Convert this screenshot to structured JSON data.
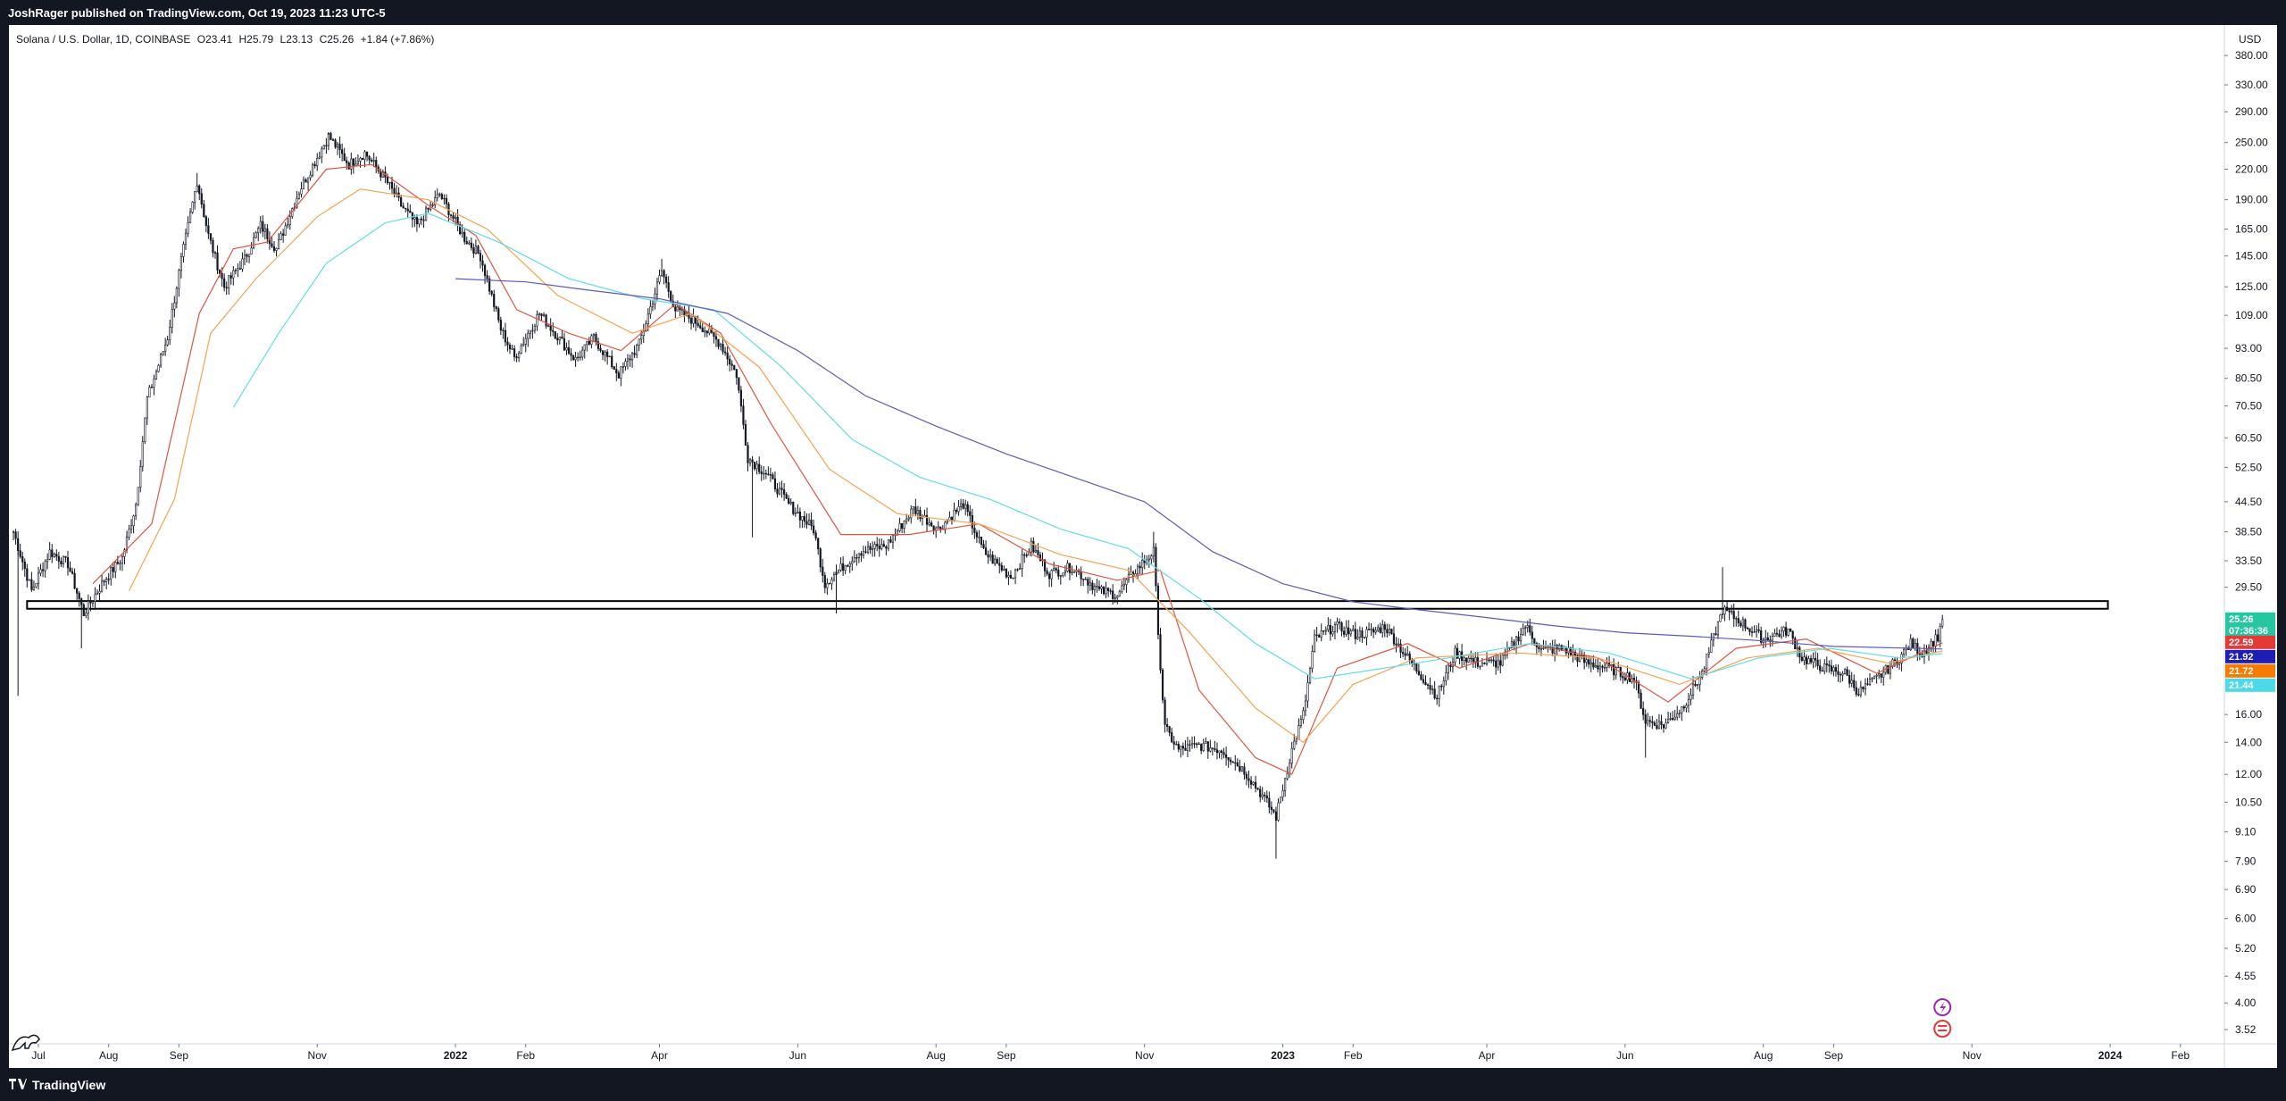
{
  "header": {
    "publish_line": "JoshRager published on TradingView.com, Oct 19, 2023 11:23 UTC-5"
  },
  "legend": {
    "symbol": "Solana / U.S. Dollar, 1D, COINBASE",
    "open": "O23.41",
    "high": "H25.79",
    "low": "L23.13",
    "close": "C25.26",
    "change": "+1.84 (+7.86%)"
  },
  "footer": {
    "brand": "TradingView"
  },
  "colors": {
    "candle": "#131722",
    "ma_red": "#e0553f",
    "ma_orange": "#f6a24f",
    "ma_cyan": "#5fdde8",
    "ma_blue": "#5b5bbd",
    "zone": "#000000",
    "close_tag": "#26c6a0",
    "red_tag": "#e53935",
    "blue_tag": "#1e1eb4",
    "orange_tag": "#f57c00",
    "cyan_tag": "#4dd9e8"
  },
  "chart_data": {
    "type": "candlestick",
    "title": "Solana / U.S. Dollar, 1D, COINBASE",
    "y_unit": "USD",
    "y_scale": "log",
    "ylim": [
      3.3,
      440
    ],
    "xlim": [
      "2021-06-18",
      "2024-02-20"
    ],
    "x_ticks": [
      {
        "date": "2021-07-01",
        "label": "Jul"
      },
      {
        "date": "2021-08-01",
        "label": "Aug"
      },
      {
        "date": "2021-09-01",
        "label": "Sep"
      },
      {
        "date": "2021-11-01",
        "label": "Nov"
      },
      {
        "date": "2022-01-01",
        "label": "2022"
      },
      {
        "date": "2022-02-01",
        "label": "Feb"
      },
      {
        "date": "2022-04-01",
        "label": "Apr"
      },
      {
        "date": "2022-06-01",
        "label": "Jun"
      },
      {
        "date": "2022-08-01",
        "label": "Aug"
      },
      {
        "date": "2022-09-01",
        "label": "Sep"
      },
      {
        "date": "2022-11-01",
        "label": "Nov"
      },
      {
        "date": "2023-01-01",
        "label": "2023"
      },
      {
        "date": "2023-02-01",
        "label": "Feb"
      },
      {
        "date": "2023-04-01",
        "label": "Apr"
      },
      {
        "date": "2023-06-01",
        "label": "Jun"
      },
      {
        "date": "2023-08-01",
        "label": "Aug"
      },
      {
        "date": "2023-09-01",
        "label": "Sep"
      },
      {
        "date": "2023-11-01",
        "label": "Nov"
      },
      {
        "date": "2024-01-01",
        "label": "2024"
      },
      {
        "date": "2024-02-01",
        "label": "Feb"
      }
    ],
    "y_ticks": [
      {
        "value": 380,
        "label": "380.00"
      },
      {
        "value": 330,
        "label": "330.00"
      },
      {
        "value": 290,
        "label": "290.00"
      },
      {
        "value": 250,
        "label": "250.00"
      },
      {
        "value": 220,
        "label": "220.00"
      },
      {
        "value": 190,
        "label": "190.00"
      },
      {
        "value": 165,
        "label": "165.00"
      },
      {
        "value": 145,
        "label": "145.00"
      },
      {
        "value": 125,
        "label": "125.00"
      },
      {
        "value": 109,
        "label": "109.00"
      },
      {
        "value": 93,
        "label": "93.00"
      },
      {
        "value": 80.5,
        "label": "80.50"
      },
      {
        "value": 70.5,
        "label": "70.50"
      },
      {
        "value": 60.5,
        "label": "60.50"
      },
      {
        "value": 52.5,
        "label": "52.50"
      },
      {
        "value": 44.5,
        "label": "44.50"
      },
      {
        "value": 38.5,
        "label": "38.50"
      },
      {
        "value": 33.5,
        "label": "33.50"
      },
      {
        "value": 29.5,
        "label": "29.50"
      },
      {
        "value": 16,
        "label": "16.00"
      },
      {
        "value": 14,
        "label": "14.00"
      },
      {
        "value": 12,
        "label": "12.00"
      },
      {
        "value": 10.5,
        "label": "10.50"
      },
      {
        "value": 9.1,
        "label": "9.10"
      },
      {
        "value": 7.9,
        "label": "7.90"
      },
      {
        "value": 6.9,
        "label": "6.90"
      },
      {
        "value": 6,
        "label": "6.00"
      },
      {
        "value": 5.2,
        "label": "5.20"
      },
      {
        "value": 4.55,
        "label": "4.55"
      },
      {
        "value": 4,
        "label": "4.00"
      },
      {
        "value": 3.52,
        "label": "3.52"
      }
    ],
    "price_tags": [
      {
        "value": 25.26,
        "label": "25.26",
        "sublabel": "07:36:36",
        "color": "#26c6a0"
      },
      {
        "value": 22.59,
        "label": "22.59",
        "color": "#e53935"
      },
      {
        "value": 21.92,
        "label": "21.92",
        "color": "#1e1eb4"
      },
      {
        "value": 21.72,
        "label": "21.72",
        "color": "#f57c00"
      },
      {
        "value": 21.44,
        "label": "21.44",
        "color": "#4dd9e8"
      }
    ],
    "support_zone": {
      "low": 26.6,
      "high": 27.6,
      "start": "2021-06-26",
      "end": "2023-12-31"
    },
    "price_path": [
      [
        "2021-06-20",
        38.5
      ],
      [
        "2021-06-28",
        29.0
      ],
      [
        "2021-07-06",
        35.0
      ],
      [
        "2021-07-14",
        33.0
      ],
      [
        "2021-07-21",
        26.0
      ],
      [
        "2021-07-30",
        30.5
      ],
      [
        "2021-08-07",
        34.0
      ],
      [
        "2021-08-13",
        44.0
      ],
      [
        "2021-08-18",
        73.0
      ],
      [
        "2021-08-27",
        98.0
      ],
      [
        "2021-09-02",
        142.0
      ],
      [
        "2021-09-09",
        208.0
      ],
      [
        "2021-09-14",
        160.0
      ],
      [
        "2021-09-21",
        125.0
      ],
      [
        "2021-09-30",
        143.0
      ],
      [
        "2021-10-07",
        168.0
      ],
      [
        "2021-10-14",
        150.0
      ],
      [
        "2021-10-24",
        198.0
      ],
      [
        "2021-11-06",
        258.0
      ],
      [
        "2021-11-15",
        225.0
      ],
      [
        "2021-11-22",
        238.0
      ],
      [
        "2021-12-01",
        210.0
      ],
      [
        "2021-12-08",
        185.0
      ],
      [
        "2021-12-15",
        168.0
      ],
      [
        "2021-12-25",
        195.0
      ],
      [
        "2022-01-05",
        158.0
      ],
      [
        "2022-01-12",
        145.0
      ],
      [
        "2022-01-21",
        102.0
      ],
      [
        "2022-01-27",
        89.0
      ],
      [
        "2022-02-07",
        110.0
      ],
      [
        "2022-02-14",
        100.0
      ],
      [
        "2022-02-23",
        88.0
      ],
      [
        "2022-03-03",
        98.0
      ],
      [
        "2022-03-14",
        82.0
      ],
      [
        "2022-03-23",
        95.0
      ],
      [
        "2022-04-02",
        135.0
      ],
      [
        "2022-04-08",
        112.0
      ],
      [
        "2022-04-18",
        105.0
      ],
      [
        "2022-04-28",
        95.0
      ],
      [
        "2022-05-05",
        82.0
      ],
      [
        "2022-05-10",
        55.0
      ],
      [
        "2022-05-18",
        51.0
      ],
      [
        "2022-05-28",
        44.0
      ],
      [
        "2022-06-08",
        39.0
      ],
      [
        "2022-06-13",
        30.0
      ],
      [
        "2022-06-19",
        32.0
      ],
      [
        "2022-06-28",
        35.0
      ],
      [
        "2022-07-10",
        36.0
      ],
      [
        "2022-07-22",
        43.0
      ],
      [
        "2022-08-02",
        39.0
      ],
      [
        "2022-08-13",
        44.0
      ],
      [
        "2022-08-22",
        35.0
      ],
      [
        "2022-09-03",
        31.0
      ],
      [
        "2022-09-12",
        36.0
      ],
      [
        "2022-09-20",
        31.5
      ],
      [
        "2022-09-30",
        32.5
      ],
      [
        "2022-10-12",
        29.0
      ],
      [
        "2022-10-20",
        28.5
      ],
      [
        "2022-10-28",
        32.0
      ],
      [
        "2022-11-05",
        35.0
      ],
      [
        "2022-11-08",
        20.0
      ],
      [
        "2022-11-10",
        15.0
      ],
      [
        "2022-11-16",
        13.5
      ],
      [
        "2022-11-25",
        13.8
      ],
      [
        "2022-12-05",
        13.5
      ],
      [
        "2022-12-15",
        12.2
      ],
      [
        "2022-12-22",
        11.0
      ],
      [
        "2022-12-29",
        9.8
      ],
      [
        "2023-01-05",
        13.5
      ],
      [
        "2023-01-10",
        16.0
      ],
      [
        "2023-01-15",
        23.0
      ],
      [
        "2023-01-24",
        24.5
      ],
      [
        "2023-02-02",
        23.5
      ],
      [
        "2023-02-10",
        23.8
      ],
      [
        "2023-02-15",
        24.5
      ],
      [
        "2023-02-25",
        21.0
      ],
      [
        "2023-03-10",
        17.5
      ],
      [
        "2023-03-18",
        21.5
      ],
      [
        "2023-03-28",
        20.5
      ],
      [
        "2023-04-07",
        20.5
      ],
      [
        "2023-04-18",
        24.5
      ],
      [
        "2023-04-25",
        21.8
      ],
      [
        "2023-05-05",
        22.0
      ],
      [
        "2023-05-15",
        20.5
      ],
      [
        "2023-05-25",
        20.0
      ],
      [
        "2023-06-05",
        19.0
      ],
      [
        "2023-06-10",
        15.5
      ],
      [
        "2023-06-18",
        15.2
      ],
      [
        "2023-06-26",
        16.5
      ],
      [
        "2023-07-05",
        19.5
      ],
      [
        "2023-07-14",
        26.5
      ],
      [
        "2023-07-22",
        25.0
      ],
      [
        "2023-08-01",
        23.0
      ],
      [
        "2023-08-12",
        24.0
      ],
      [
        "2023-08-18",
        21.0
      ],
      [
        "2023-08-28",
        20.0
      ],
      [
        "2023-09-06",
        19.5
      ],
      [
        "2023-09-12",
        17.8
      ],
      [
        "2023-09-21",
        19.2
      ],
      [
        "2023-09-30",
        21.0
      ],
      [
        "2023-10-05",
        22.5
      ],
      [
        "2023-10-10",
        21.5
      ],
      [
        "2023-10-17",
        23.3
      ],
      [
        "2023-10-19",
        25.26
      ]
    ],
    "wick_extremes": [
      {
        "date": "2021-06-22",
        "low": 17.5
      },
      {
        "date": "2021-07-20",
        "low": 22.0
      },
      {
        "date": "2021-09-09",
        "high": 216.0
      },
      {
        "date": "2021-11-06",
        "high": 260.0
      },
      {
        "date": "2022-04-02",
        "high": 143.0
      },
      {
        "date": "2022-05-12",
        "low": 37.5
      },
      {
        "date": "2022-06-18",
        "low": 26.0
      },
      {
        "date": "2022-11-05",
        "high": 38.5
      },
      {
        "date": "2022-12-29",
        "low": 8.0
      },
      {
        "date": "2023-06-10",
        "low": 13.0
      },
      {
        "date": "2023-07-14",
        "high": 32.5
      }
    ],
    "series": [
      {
        "color": "#e0553f",
        "points": [
          [
            "2021-07-25",
            30.0
          ],
          [
            "2021-08-20",
            40.0
          ],
          [
            "2021-09-10",
            110.0
          ],
          [
            "2021-09-25",
            150.0
          ],
          [
            "2021-10-10",
            155.0
          ],
          [
            "2021-11-05",
            220.0
          ],
          [
            "2021-11-25",
            225.0
          ],
          [
            "2021-12-20",
            185.0
          ],
          [
            "2022-01-10",
            160.0
          ],
          [
            "2022-01-28",
            112.0
          ],
          [
            "2022-02-20",
            100.0
          ],
          [
            "2022-03-15",
            92.0
          ],
          [
            "2022-04-08",
            115.0
          ],
          [
            "2022-04-28",
            100.0
          ],
          [
            "2022-05-20",
            65.0
          ],
          [
            "2022-06-20",
            38.0
          ],
          [
            "2022-07-20",
            38.0
          ],
          [
            "2022-08-20",
            40.0
          ],
          [
            "2022-09-20",
            33.0
          ],
          [
            "2022-10-20",
            30.5
          ],
          [
            "2022-11-08",
            32.0
          ],
          [
            "2022-11-25",
            18.0
          ],
          [
            "2022-12-20",
            13.0
          ],
          [
            "2023-01-05",
            12.0
          ],
          [
            "2023-01-25",
            20.0
          ],
          [
            "2023-02-25",
            22.5
          ],
          [
            "2023-03-20",
            20.0
          ],
          [
            "2023-04-20",
            22.5
          ],
          [
            "2023-05-20",
            21.0
          ],
          [
            "2023-06-20",
            17.0
          ],
          [
            "2023-07-20",
            22.0
          ],
          [
            "2023-08-20",
            23.0
          ],
          [
            "2023-09-20",
            19.5
          ],
          [
            "2023-10-19",
            22.59
          ]
        ]
      },
      {
        "color": "#f6a24f",
        "points": [
          [
            "2021-08-10",
            29.0
          ],
          [
            "2021-08-30",
            45.0
          ],
          [
            "2021-09-15",
            100.0
          ],
          [
            "2021-10-05",
            130.0
          ],
          [
            "2021-11-01",
            175.0
          ],
          [
            "2021-11-20",
            200.0
          ],
          [
            "2021-12-20",
            190.0
          ],
          [
            "2022-01-15",
            165.0
          ],
          [
            "2022-02-15",
            120.0
          ],
          [
            "2022-03-20",
            100.0
          ],
          [
            "2022-04-15",
            110.0
          ],
          [
            "2022-05-15",
            85.0
          ],
          [
            "2022-06-15",
            52.0
          ],
          [
            "2022-07-15",
            42.0
          ],
          [
            "2022-08-20",
            40.0
          ],
          [
            "2022-09-25",
            34.5
          ],
          [
            "2022-10-25",
            32.0
          ],
          [
            "2022-11-20",
            24.0
          ],
          [
            "2022-12-20",
            16.5
          ],
          [
            "2023-01-10",
            14.0
          ],
          [
            "2023-02-01",
            18.5
          ],
          [
            "2023-03-01",
            21.0
          ],
          [
            "2023-04-15",
            21.5
          ],
          [
            "2023-05-20",
            21.0
          ],
          [
            "2023-06-25",
            18.5
          ],
          [
            "2023-07-25",
            21.0
          ],
          [
            "2023-08-25",
            22.0
          ],
          [
            "2023-09-25",
            20.5
          ],
          [
            "2023-10-19",
            21.72
          ]
        ]
      },
      {
        "color": "#5fdde8",
        "points": [
          [
            "2021-09-25",
            70.0
          ],
          [
            "2021-10-15",
            100.0
          ],
          [
            "2021-11-05",
            140.0
          ],
          [
            "2021-12-01",
            170.0
          ],
          [
            "2021-12-20",
            178.0
          ],
          [
            "2022-01-20",
            155.0
          ],
          [
            "2022-02-20",
            130.0
          ],
          [
            "2022-03-25",
            118.0
          ],
          [
            "2022-04-25",
            112.0
          ],
          [
            "2022-05-25",
            85.0
          ],
          [
            "2022-06-25",
            60.0
          ],
          [
            "2022-07-25",
            50.0
          ],
          [
            "2022-08-25",
            45.0
          ],
          [
            "2022-09-25",
            39.0
          ],
          [
            "2022-10-25",
            35.5
          ],
          [
            "2022-11-25",
            28.0
          ],
          [
            "2022-12-20",
            22.5
          ],
          [
            "2023-01-15",
            19.0
          ],
          [
            "2023-02-15",
            20.0
          ],
          [
            "2023-03-15",
            21.0
          ],
          [
            "2023-04-20",
            22.5
          ],
          [
            "2023-05-25",
            21.5
          ],
          [
            "2023-06-30",
            19.0
          ],
          [
            "2023-07-30",
            21.0
          ],
          [
            "2023-08-30",
            22.0
          ],
          [
            "2023-09-30",
            21.0
          ],
          [
            "2023-10-19",
            21.44
          ]
        ]
      },
      {
        "color": "#5b5bbd",
        "points": [
          [
            "2022-01-01",
            130.0
          ],
          [
            "2022-02-01",
            128.0
          ],
          [
            "2022-03-01",
            123.0
          ],
          [
            "2022-04-01",
            118.0
          ],
          [
            "2022-05-01",
            110.0
          ],
          [
            "2022-06-01",
            92.0
          ],
          [
            "2022-07-01",
            74.0
          ],
          [
            "2022-08-01",
            64.0
          ],
          [
            "2022-09-01",
            56.0
          ],
          [
            "2022-10-01",
            50.0
          ],
          [
            "2022-11-01",
            44.5
          ],
          [
            "2022-12-01",
            35.0
          ],
          [
            "2023-01-01",
            30.0
          ],
          [
            "2023-02-01",
            27.5
          ],
          [
            "2023-03-01",
            26.5
          ],
          [
            "2023-04-01",
            25.5
          ],
          [
            "2023-05-01",
            24.5
          ],
          [
            "2023-06-01",
            23.7
          ],
          [
            "2023-07-01",
            23.3
          ],
          [
            "2023-08-01",
            22.8
          ],
          [
            "2023-09-01",
            22.2
          ],
          [
            "2023-10-19",
            21.92
          ]
        ]
      }
    ]
  }
}
